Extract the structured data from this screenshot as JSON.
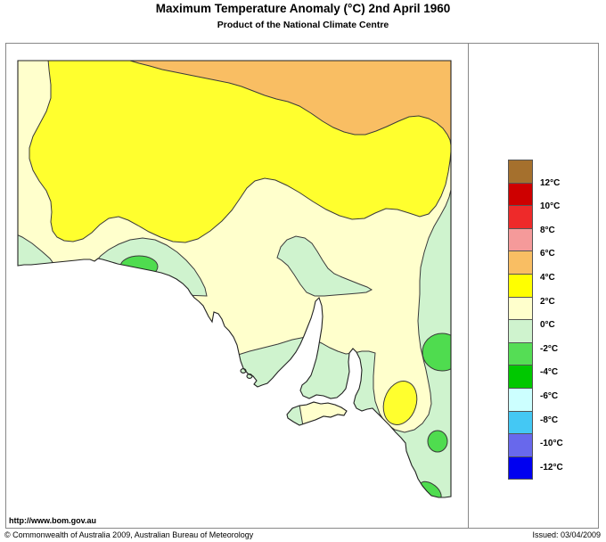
{
  "header": {
    "title": "Maximum Temperature Anomaly (°C)  2nd April 1960",
    "subtitle": "Product of the National Climate Centre"
  },
  "footer": {
    "url": "http://www.bom.gov.au",
    "copyright": "© Commonwealth of Australia 2009, Australian Bureau of Meteorology",
    "issued": "Issued: 03/04/2009"
  },
  "legend": {
    "unit": "°C",
    "labels": [
      "12°C",
      "10°C",
      "8°C",
      "6°C",
      "4°C",
      "2°C",
      "0°C",
      "-2°C",
      "-4°C",
      "-6°C",
      "-8°C",
      "-10°C",
      "-12°C"
    ],
    "colors": [
      "#a5702d",
      "#ce0000",
      "#ee2a2a",
      "#f59a9a",
      "#f9be63",
      "#ffff00",
      "#ffffcc",
      "#cff3ce",
      "#55dd55",
      "#00c800",
      "#ccffff",
      "#44c8f4",
      "#6868ec",
      "#0000f0"
    ]
  },
  "map": {
    "region_name": "South Australia",
    "anomaly_bands_shown": [
      "4 to 6",
      "2 to 4",
      "0 to 2",
      "-2 to 0",
      "-4 to -2"
    ],
    "colors": {
      "ocean": "#ffffff",
      "cream": "#ffffcc",
      "yellow": "#ffff2e",
      "orange": "#f9be63",
      "lightgreen": "#cff3ce",
      "green": "#4fdc4f"
    },
    "features": [
      "orange 4-6 band along northern border",
      "large yellow 2-4 region across north and centre",
      "cream 0-2 strip along western border and across centre-south",
      "light green -2-0 over south-east, lower Eyre Peninsula and gulfs coasts",
      "green -4--2 blobs on Bight coast, eastern border and south-east",
      "cream ring with yellow 2-4 core inland of the Coorong",
      "Kangaroo Island mostly 0-2"
    ]
  }
}
